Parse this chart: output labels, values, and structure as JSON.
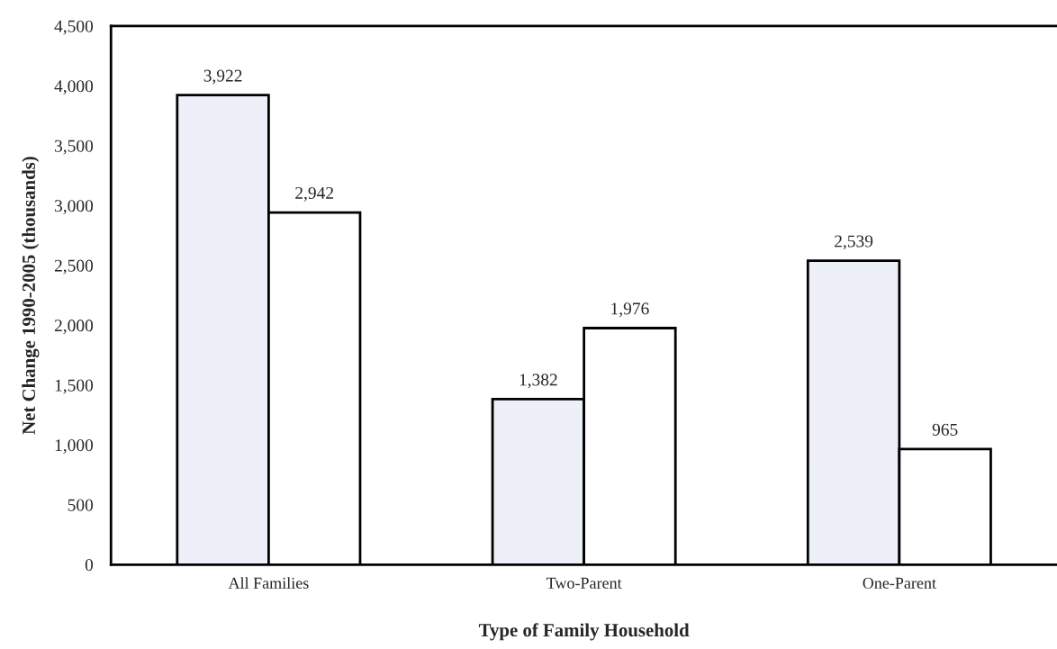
{
  "chart_data": {
    "type": "bar",
    "xlabel": "Type of Family Household",
    "ylabel": "Net Change 1990-2005 (thousands)",
    "categories": [
      "All Families",
      "Two-Parent",
      "One-Parent"
    ],
    "series": [
      {
        "color": "#edf0f8",
        "values": [
          3922,
          1382,
          2539
        ],
        "value_labels": [
          "3,922",
          "1,382",
          "2,539"
        ]
      },
      {
        "color": "#ffffff",
        "values": [
          2942,
          1976,
          965
        ],
        "value_labels": [
          "2,942",
          "1,976",
          "965"
        ]
      }
    ],
    "ylim": [
      0,
      4500
    ],
    "yticks": [
      0,
      500,
      {
        "value": 1000,
        "label": "1,000"
      },
      {
        "value": 1500,
        "label": "1,500"
      },
      {
        "value": 2000,
        "label": "2,000"
      },
      {
        "value": 2500,
        "label": "2,500"
      },
      {
        "value": 3000,
        "label": "3,000"
      },
      {
        "value": 3500,
        "label": "3,500"
      },
      {
        "value": 4000,
        "label": "4,000"
      },
      {
        "value": 4500,
        "label": "4,500"
      }
    ],
    "grid": false,
    "legend": false
  }
}
